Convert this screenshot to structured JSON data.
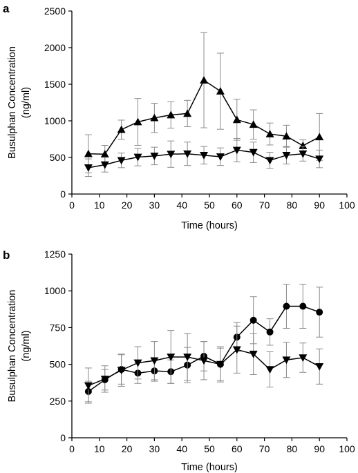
{
  "chart_data": [
    {
      "panel_label": "a",
      "type": "line",
      "xlabel": "Time (hours)",
      "ylabel": [
        "Busulphan Concentration",
        "(ng/ml)"
      ],
      "xlim": [
        0,
        100
      ],
      "ylim": [
        0,
        2500
      ],
      "xticks": [
        "0",
        "10",
        "20",
        "30",
        "40",
        "50",
        "60",
        "70",
        "80",
        "90",
        "100"
      ],
      "yticks": [
        "0",
        "500",
        "1000",
        "1500",
        "2000",
        "2500"
      ],
      "x": [
        6,
        12,
        18,
        24,
        30,
        36,
        42,
        48,
        54,
        60,
        66,
        72,
        78,
        84,
        90
      ],
      "series": [
        {
          "marker": "triangle-up",
          "values": [
            550,
            545,
            880,
            985,
            1040,
            1080,
            1100,
            1555,
            1405,
            1015,
            950,
            820,
            790,
            660,
            780
          ],
          "error": [
            260,
            120,
            130,
            320,
            200,
            180,
            180,
            650,
            520,
            280,
            200,
            150,
            150,
            80,
            320
          ]
        },
        {
          "marker": "triangle-down",
          "values": [
            360,
            400,
            460,
            505,
            520,
            545,
            550,
            530,
            510,
            600,
            570,
            460,
            530,
            550,
            480
          ],
          "error": [
            120,
            100,
            100,
            120,
            120,
            180,
            160,
            120,
            120,
            160,
            140,
            110,
            120,
            100,
            120
          ]
        }
      ]
    },
    {
      "panel_label": "b",
      "type": "line",
      "xlabel": "Time (hours)",
      "ylabel": [
        "Busulphan Concentration",
        "(ng/ml)"
      ],
      "xlim": [
        0,
        100
      ],
      "ylim": [
        0,
        1250
      ],
      "xticks": [
        "0",
        "10",
        "20",
        "30",
        "40",
        "50",
        "60",
        "70",
        "80",
        "90",
        "100"
      ],
      "yticks": [
        "0",
        "250",
        "500",
        "750",
        "1000",
        "1250"
      ],
      "x": [
        6,
        12,
        18,
        24,
        30,
        36,
        42,
        48,
        54,
        60,
        66,
        72,
        78,
        84,
        90
      ],
      "series": [
        {
          "marker": "circle",
          "values": [
            315,
            395,
            465,
            440,
            455,
            450,
            495,
            555,
            500,
            685,
            800,
            720,
            895,
            895,
            855
          ],
          "error": [
            70,
            70,
            100,
            70,
            70,
            80,
            120,
            100,
            110,
            100,
            160,
            90,
            150,
            150,
            170
          ]
        },
        {
          "marker": "triangle-down",
          "values": [
            355,
            400,
            460,
            510,
            525,
            550,
            550,
            525,
            500,
            600,
            570,
            465,
            530,
            545,
            485
          ],
          "error": [
            120,
            90,
            110,
            110,
            130,
            180,
            160,
            130,
            120,
            160,
            140,
            120,
            120,
            100,
            120
          ]
        }
      ]
    }
  ]
}
